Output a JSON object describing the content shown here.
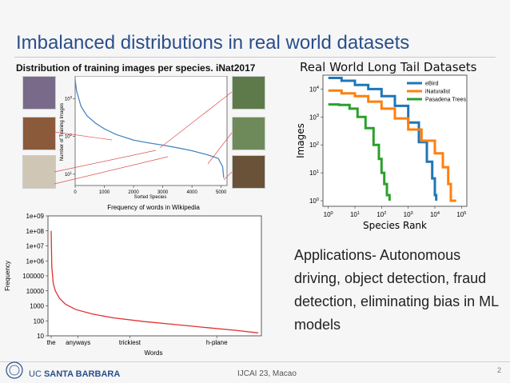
{
  "slide": {
    "title": "Imbalanced distributions in real world datasets",
    "body": "Applications- Autonomous driving, object detection, fraud detection, eliminating bias in ML models",
    "footer_org_prefix": "UC",
    "footer_org_name": "SANTA BARBARA",
    "footer_venue": "IJCAI 23, Macao",
    "page_number": "2"
  },
  "colors": {
    "title": "#2a4f8a",
    "inat_curve": "#4a86c0",
    "ebird": "#1f77b4",
    "inaturalist": "#ff7f0e",
    "pasadena": "#2ca02c",
    "words_curve": "#e03030"
  },
  "photos": [
    {
      "name": "butterfly-photo",
      "color": "#7a6a8a"
    },
    {
      "name": "berries-photo",
      "color": "#8a5a3a"
    },
    {
      "name": "sand-dollar-photo",
      "color": "#cfc6b6"
    },
    {
      "name": "leaves-photo",
      "color": "#5f7a4a"
    },
    {
      "name": "white-flowers-photo",
      "color": "#6f8a5a"
    },
    {
      "name": "fungus-photo",
      "color": "#6a5238"
    }
  ],
  "chart_data": [
    {
      "type": "line",
      "title": "Distribution of training images per species. iNat2017",
      "xlabel": "Sorted Species",
      "ylabel": "Number of Training Images",
      "x_ticks": [
        "0",
        "1000",
        "2000",
        "3000",
        "4000",
        "5000"
      ],
      "y_ticks": [
        "10^1",
        "10^2",
        "10^3"
      ],
      "xlim": [
        0,
        5200
      ],
      "ylim_log10": [
        0.7,
        3.6
      ],
      "series": [
        {
          "x": [
            0,
            50,
            200,
            400,
            700,
            1000,
            1400,
            1800,
            2000,
            2500,
            3000,
            3500,
            4000,
            4500,
            4900,
            5050,
            5089
          ],
          "log10y": [
            3.5,
            3.2,
            2.8,
            2.55,
            2.35,
            2.2,
            2.05,
            1.95,
            1.9,
            1.83,
            1.77,
            1.7,
            1.62,
            1.52,
            1.42,
            1.2,
            0.9
          ]
        }
      ]
    },
    {
      "type": "line",
      "title": "Real World Long Tail Datasets",
      "xlabel": "Species Rank",
      "ylabel": "Images",
      "x_ticks": [
        "10^0",
        "10^1",
        "10^2",
        "10^3",
        "10^4",
        "10^5"
      ],
      "y_ticks": [
        "10^0",
        "10^1",
        "10^2",
        "10^3",
        "10^4"
      ],
      "scale": "log-log",
      "xlim_log10": [
        -0.2,
        5.2
      ],
      "ylim_log10": [
        -0.2,
        4.5
      ],
      "legend": "top-right",
      "series": [
        {
          "name": "eBird",
          "log10x": [
            0,
            0.5,
            1,
            1.5,
            2,
            2.5,
            3,
            3.4,
            3.7,
            3.9,
            4.0,
            4.05
          ],
          "log10y": [
            4.4,
            4.3,
            4.15,
            4.0,
            3.75,
            3.4,
            2.8,
            2.1,
            1.4,
            0.8,
            0.2,
            0.0
          ]
        },
        {
          "name": "iNaturalist",
          "log10x": [
            0,
            0.5,
            1,
            1.5,
            2,
            2.5,
            3,
            3.5,
            4,
            4.3,
            4.5,
            4.6,
            4.8
          ],
          "log10y": [
            3.95,
            3.85,
            3.75,
            3.55,
            3.3,
            2.95,
            2.55,
            2.15,
            1.7,
            1.2,
            0.6,
            0.0,
            0.0
          ]
        },
        {
          "name": "Pasadena Trees",
          "log10x": [
            0,
            0.4,
            0.8,
            1.1,
            1.4,
            1.7,
            1.9,
            2.0,
            2.1,
            2.2,
            2.3
          ],
          "log10y": [
            3.45,
            3.43,
            3.3,
            3.0,
            2.6,
            2.0,
            1.5,
            1.0,
            0.6,
            0.2,
            0.0
          ]
        }
      ]
    },
    {
      "type": "line",
      "title": "Frequency of words in Wikipedia",
      "xlabel": "Words",
      "ylabel": "Frequency",
      "x_ticks": [
        "the",
        "anyways",
        "trickiest",
        "h-plane"
      ],
      "y_ticks": [
        "10",
        "100",
        "1000",
        "10000",
        "100000",
        "1e+06",
        "1e+07",
        "1e+08",
        "1e+09"
      ],
      "ylim_log10": [
        1,
        9
      ],
      "series": [
        {
          "t": [
            0,
            0.003,
            0.01,
            0.02,
            0.04,
            0.07,
            0.12,
            0.2,
            0.3,
            0.45,
            0.6,
            0.75,
            0.9,
            1.0
          ],
          "log10y": [
            8.0,
            5.6,
            4.5,
            4.0,
            3.5,
            3.1,
            2.75,
            2.45,
            2.2,
            1.95,
            1.75,
            1.55,
            1.35,
            1.2
          ]
        }
      ]
    }
  ]
}
